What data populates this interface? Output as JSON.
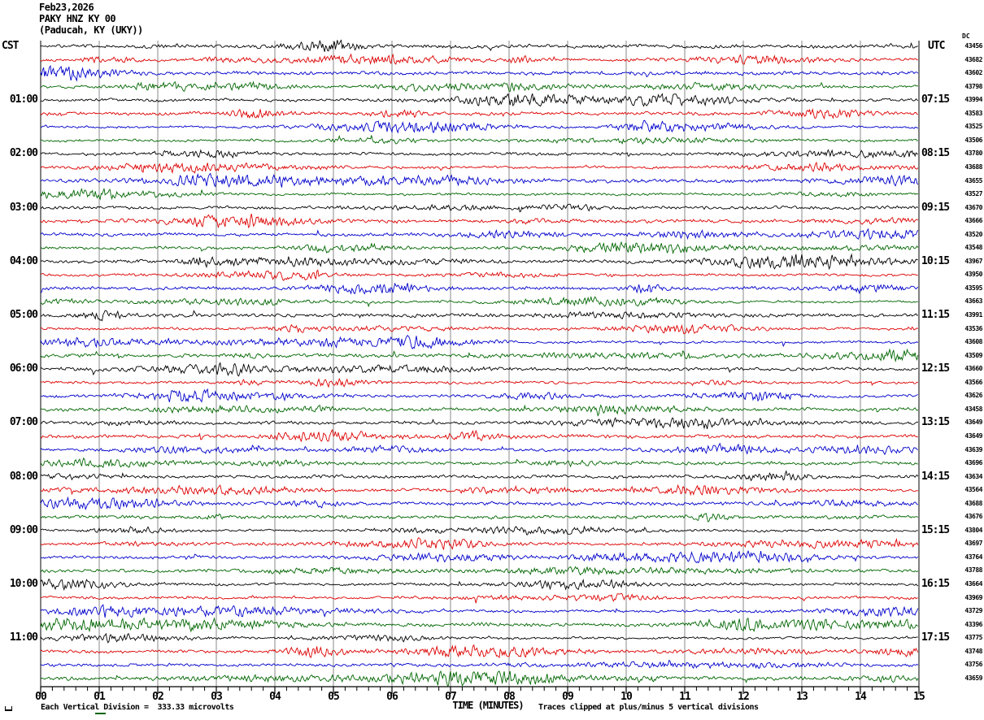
{
  "header": {
    "date": "Feb23,2026",
    "station": "PAKY HNZ KY 00",
    "location": "(Paducah, KY (UKY))"
  },
  "axis": {
    "left_header": "CST",
    "right_header": "UTC",
    "dc_header": "DC",
    "x_label": "TIME (MINUTES)"
  },
  "footer": {
    "scale_note": "Each Vertical Division =  333.33 microvolts",
    "clip_note": "Traces clipped at plus/minus 5 vertical divisions"
  },
  "chart_data": {
    "type": "line",
    "subtype": "helicorder-seismogram",
    "title": "PAKY HNZ KY 00 (Paducah, KY (UKY)) Feb23,2026",
    "minutes_per_line": 15,
    "num_traces": 48,
    "lines_per_hour": 4,
    "trace_color_cycle": [
      "#000000",
      "#dd0000",
      "#0000cc",
      "#006600"
    ],
    "x_range": [
      0,
      15
    ],
    "x_minor_tick_minutes": 0.2,
    "xlabel": "TIME (MINUTES)",
    "x_tick_labels": [
      "00",
      "01",
      "02",
      "03",
      "04",
      "05",
      "06",
      "07",
      "08",
      "09",
      "10",
      "11",
      "12",
      "13",
      "14",
      "15"
    ],
    "left_time_labels": [
      "01:00",
      "02:00",
      "03:00",
      "04:00",
      "05:00",
      "06:00",
      "07:00",
      "08:00",
      "09:00",
      "10:00",
      "11:00"
    ],
    "right_time_labels": [
      "07:15",
      "08:15",
      "09:15",
      "10:15",
      "11:15",
      "12:15",
      "13:15",
      "14:15",
      "15:15",
      "16:15",
      "17:15"
    ],
    "dc_values": [
      "43456",
      "43682",
      "43602",
      "43798",
      "43994",
      "43583",
      "43525",
      "43506",
      "43780",
      "43688",
      "43655",
      "43527",
      "43670",
      "43666",
      "43520",
      "43548",
      "43967",
      "43950",
      "43595",
      "43663",
      "43991",
      "43536",
      "43608",
      "43509",
      "43660",
      "43566",
      "43626",
      "43458",
      "43649",
      "43649",
      "43639",
      "43696",
      "43634",
      "43564",
      "43688",
      "43676",
      "43804",
      "43697",
      "43764",
      "43788",
      "43664",
      "43969",
      "43729",
      "43396",
      "43775",
      "43748",
      "43756",
      "43659"
    ],
    "microvolts_per_division": "333.33",
    "clip_divisions": 5,
    "signal_description": "continuous background seismic noise with intermittent short high-amplitude bursts"
  }
}
